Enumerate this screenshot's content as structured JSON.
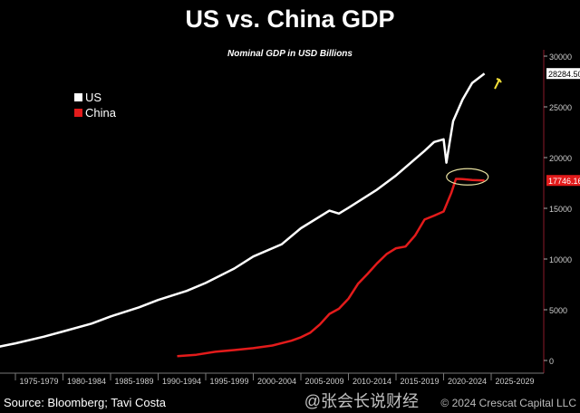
{
  "chart_data": {
    "type": "line",
    "title": "US vs. China GDP",
    "subtitle": "Nominal GDP in USD Billions",
    "ylim": [
      0,
      30000
    ],
    "xlim": [
      1975,
      2030
    ],
    "y_ticks": [
      0,
      5000,
      10000,
      15000,
      20000,
      25000,
      30000
    ],
    "x_tick_labels": [
      "1975-1979",
      "1980-1984",
      "1985-1989",
      "1990-1994",
      "1995-1999",
      "2000-2004",
      "2005-2009",
      "2010-2014",
      "2015-2019",
      "2020-2024",
      "2025-2029"
    ],
    "y_axis_side": "right",
    "grid": false,
    "legend_position": "top-left",
    "series": [
      {
        "name": "US",
        "color": "#ffffff",
        "last_value_label": "28284.50",
        "x": [
          1973,
          1975,
          1978,
          1980,
          1983,
          1985,
          1988,
          1990,
          1993,
          1995,
          1998,
          2000,
          2003,
          2005,
          2008,
          2009,
          2010,
          2013,
          2015,
          2018,
          2019,
          2020,
          2020.3,
          2020.6,
          2021,
          2022,
          2023,
          2024.3
        ],
        "y": [
          1300,
          1685,
          2350,
          2857,
          3630,
          4339,
          5240,
          5963,
          6860,
          7640,
          9060,
          10250,
          11460,
          13040,
          14770,
          14480,
          15050,
          16840,
          18240,
          20660,
          21540,
          21800,
          19500,
          21300,
          23590,
          25740,
          27360,
          28284.5
        ]
      },
      {
        "name": "China",
        "color": "#e31b1b",
        "last_value_label": "17746.16",
        "x": [
          1992,
          1994,
          1996,
          1998,
          2000,
          2002,
          2004,
          2005,
          2006,
          2007,
          2008,
          2009,
          2010,
          2011,
          2012,
          2013,
          2014,
          2015,
          2016,
          2017,
          2018,
          2019,
          2020,
          2020.8,
          2021.3,
          2022,
          2023,
          2024.3
        ],
        "y": [
          430,
          560,
          860,
          1030,
          1210,
          1470,
          1950,
          2290,
          2750,
          3550,
          4590,
          5100,
          6090,
          7550,
          8530,
          9570,
          10480,
          11060,
          11230,
          12310,
          13890,
          14280,
          14690,
          16500,
          17900,
          17880,
          17790,
          17746.16
        ]
      }
    ],
    "annotations": [
      "yellow ellipse around China peak",
      "yellow arrow pointing up at US line end"
    ]
  },
  "source": "Source: Bloomberg; Tavi Costa",
  "copyright": "© 2024 Crescat Capital LLC",
  "watermark": "@张会长说财经"
}
